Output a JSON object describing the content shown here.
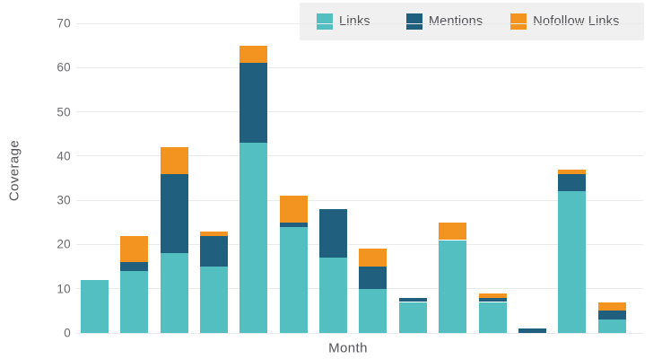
{
  "chart_data": {
    "type": "bar",
    "stacked": true,
    "title": "",
    "xlabel": "Month",
    "ylabel": "Coverage",
    "ylim": [
      0,
      70
    ],
    "yticks": [
      0,
      10,
      20,
      30,
      40,
      50,
      60,
      70
    ],
    "grid": true,
    "x_tick_labels_visible": false,
    "bar_count": 14,
    "legend_position": "top-right",
    "series": [
      {
        "name": "Links",
        "color": "#53bfc1",
        "values": [
          12,
          14,
          18,
          15,
          43,
          24,
          17,
          10,
          7,
          21,
          7,
          0,
          32,
          3
        ]
      },
      {
        "name": "Mentions",
        "color": "#20607e",
        "values": [
          0,
          2,
          18,
          7,
          18,
          1,
          11,
          5,
          1,
          0,
          1,
          1,
          4,
          2
        ]
      },
      {
        "name": "Nofollow Links",
        "color": "#f2941f",
        "values": [
          0,
          6,
          6,
          1,
          4,
          6,
          0,
          4,
          0,
          4,
          1,
          0,
          1,
          2
        ]
      }
    ],
    "totals": [
      12,
      22,
      42,
      23,
      65,
      31,
      28,
      19,
      8,
      25,
      9,
      1,
      37,
      7
    ]
  },
  "colors": {
    "background": "#ffffff",
    "gridline": "#e9eaeb",
    "tick_text": "#6a6b6e",
    "axis_label_text": "#54555a",
    "legend_background": "#f0f0f1",
    "legend_text": "#525356"
  }
}
